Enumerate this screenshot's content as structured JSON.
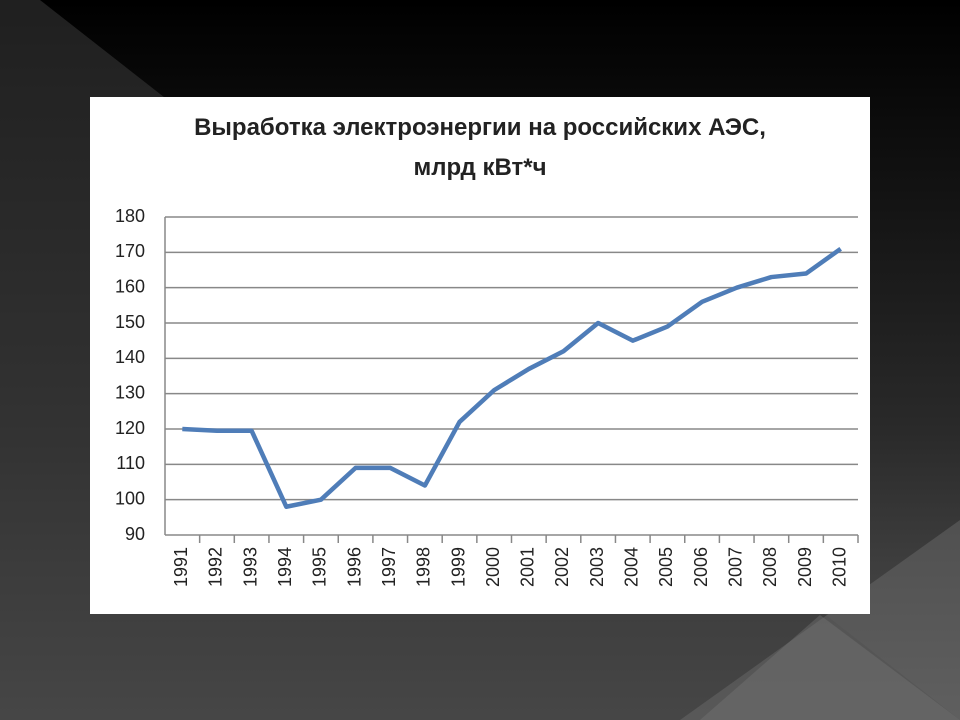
{
  "chart_data": {
    "type": "line",
    "title": "Выработка электроэнергии на российских АЭС, млрд кВт*ч",
    "categories": [
      "1991",
      "1992",
      "1993",
      "1994",
      "1995",
      "1996",
      "1997",
      "1998",
      "1999",
      "2000",
      "2001",
      "2002",
      "2003",
      "2004",
      "2005",
      "2006",
      "2007",
      "2008",
      "2009",
      "2010"
    ],
    "values": [
      120,
      119.5,
      119.5,
      98,
      100,
      109,
      109,
      104,
      122,
      131,
      137,
      142,
      150,
      145,
      149,
      156,
      160,
      163,
      164,
      171
    ],
    "color": "#4f7db8",
    "ylim": [
      90,
      180
    ],
    "yticks": [
      90,
      100,
      110,
      120,
      130,
      140,
      150,
      160,
      170,
      180
    ],
    "grid": true
  }
}
